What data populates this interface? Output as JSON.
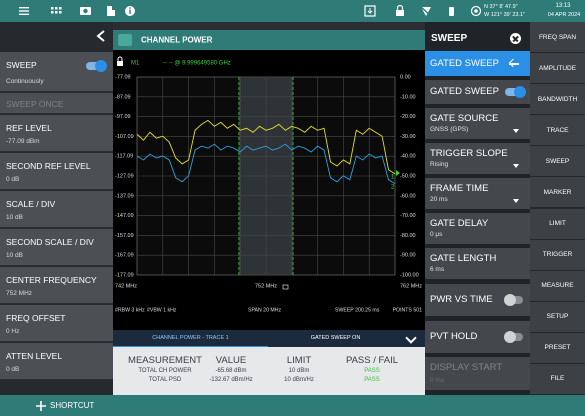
{
  "top_bar": {
    "gps_lat": "N 37° 8' 47.9\"",
    "gps_lon": "W 121° 39' 23.1\"",
    "time": "13:13",
    "date": "04 APR 2024"
  },
  "left_panel": {
    "items": [
      {
        "label": "SWEEP",
        "value": "Continuously",
        "toggle": true
      },
      {
        "label": "SWEEP ONCE",
        "disabled": true
      },
      {
        "label": "REF LEVEL",
        "value": "-77.09 dBm"
      },
      {
        "label": "SECOND REF LEVEL",
        "value": "0 dB"
      },
      {
        "label": "SCALE / DIV",
        "value": "10 dB"
      },
      {
        "label": "SECOND SCALE / DIV",
        "value": "10 dB"
      },
      {
        "label": "CENTER FREQUENCY",
        "value": "752 MHz"
      },
      {
        "label": "FREQ OFFSET",
        "value": "0 Hz"
      },
      {
        "label": "ATTEN LEVEL",
        "value": "0 dB"
      }
    ]
  },
  "chart_data": {
    "type": "line",
    "title": "CHANNEL POWER",
    "marker": "M1",
    "marker_readout": "-- -- @ 9.999649580 GHz",
    "x": [
      742,
      742.5,
      743,
      743.5,
      744,
      744.5,
      745,
      745.5,
      746,
      746.5,
      747,
      747.5,
      748,
      748.5,
      749,
      749.5,
      750,
      750.5,
      751,
      751.5,
      752,
      752.5,
      753,
      753.5,
      754,
      754.5,
      755,
      755.5,
      756,
      756.5,
      757,
      757.5,
      758,
      758.5,
      759,
      759.5,
      760,
      760.5,
      761,
      761.5,
      762
    ],
    "series": [
      {
        "color": "#e6e02a",
        "values": [
          -106,
          -109,
          -105,
          -108,
          -107,
          -110,
          -118,
          -121,
          -119,
          -104,
          -101,
          -99,
          -102,
          -100,
          -103,
          -101,
          -104,
          -103,
          -105,
          -102,
          -104,
          -103,
          -101,
          -104,
          -102,
          -103,
          -105,
          -102,
          -104,
          -103,
          -120,
          -122,
          -119,
          -121,
          -104,
          -106,
          -103,
          -105,
          -107,
          -124,
          -126
        ]
      },
      {
        "color": "#2f9fdc",
        "values": [
          -117,
          -119,
          -116,
          -118,
          -117,
          -119,
          -128,
          -130,
          -127,
          -114,
          -112,
          -113,
          -111,
          -114,
          -112,
          -113,
          -115,
          -112,
          -114,
          -113,
          -112,
          -114,
          -113,
          -111,
          -114,
          -112,
          -113,
          -115,
          -112,
          -114,
          -128,
          -130,
          -127,
          -129,
          -117,
          -119,
          -116,
          -118,
          -117,
          -129,
          -131
        ]
      }
    ],
    "xlim": [
      742,
      762
    ],
    "xticks": [
      {
        "value": 742,
        "label": "742 MHz"
      },
      {
        "value": 752,
        "label": "752 MHz"
      },
      {
        "value": 762,
        "label": "762 MHz"
      }
    ],
    "ylim": [
      -177.09,
      -77.09
    ],
    "yticks": [
      -77.09,
      -87.09,
      -97.09,
      -107.09,
      -117.09,
      -127.09,
      -137.09,
      -147.09,
      -157.09,
      -167.09,
      -177.09
    ],
    "y2lim": [
      -100,
      0
    ],
    "y2ticks": [
      {
        "value": 0,
        "label": "0.00"
      },
      {
        "value": -10,
        "label": "-10.00"
      },
      {
        "value": -20,
        "label": "-20.00"
      },
      {
        "value": -30,
        "label": "-30.00"
      },
      {
        "value": -40,
        "label": "-40.00"
      },
      {
        "value": -50,
        "label": "-50.00"
      },
      {
        "value": -60,
        "label": "-60.00"
      },
      {
        "value": -70,
        "label": "-70.00"
      },
      {
        "value": -80,
        "label": "-80.00"
      },
      {
        "value": -90,
        "label": "-90.00"
      },
      {
        "value": -100,
        "label": "-100.00"
      }
    ],
    "channel_edges": [
      749.9,
      754.1
    ],
    "grid": true,
    "trace_tags": [
      "1",
      "2"
    ],
    "settings": [
      "#RBW 3 kHz",
      "#VBW 1 kHz",
      "SPAN 20 MHz",
      "SWEEP 200.25 ms",
      "POINTS 501"
    ]
  },
  "measurement_bar": {
    "tab": "CHANNEL POWER - TRACE 1",
    "status": "GATED SWEEP ON"
  },
  "table": {
    "header": [
      "MEASUREMENT",
      "VALUE",
      "LIMIT",
      "PASS / FAIL"
    ],
    "rows": [
      [
        "TOTAL CH POWER",
        "-65.68 dBm",
        "10 dBm",
        "PASS"
      ],
      [
        "TOTAL PSD",
        "-132.67 dBm/Hz",
        "10 dBm/Hz",
        "PASS"
      ]
    ]
  },
  "sweep_panel": {
    "title": "SWEEP",
    "items": [
      {
        "label": "GATED SWEEP",
        "selected": true
      },
      {
        "label": "GATED SWEEP",
        "toggle": true
      },
      {
        "label": "GATE SOURCE",
        "value": "GNSS (GPS)",
        "dropdown": true
      },
      {
        "label": "TRIGGER SLOPE",
        "value": "Rising",
        "dropdown": true
      },
      {
        "label": "FRAME TIME",
        "value": "20 ms",
        "dropdown": true
      },
      {
        "label": "GATE DELAY",
        "value": "0 μs"
      },
      {
        "label": "GATE LENGTH",
        "value": "6 ms"
      },
      {
        "label": "PWR VS TIME",
        "toggle": false
      },
      {
        "label": "PVT HOLD",
        "toggle": false
      },
      {
        "label": "DISPLAY START",
        "value": "0 ms",
        "disabled": true
      }
    ]
  },
  "menu": [
    "FREQ SPAN",
    "AMPLITUDE",
    "BANDWIDTH",
    "TRACE",
    "SWEEP",
    "MARKER",
    "LIMIT",
    "TRIGGER",
    "MEASURE",
    "SETUP",
    "PRESET",
    "FILE"
  ],
  "shortcut": "SHORTCUT"
}
